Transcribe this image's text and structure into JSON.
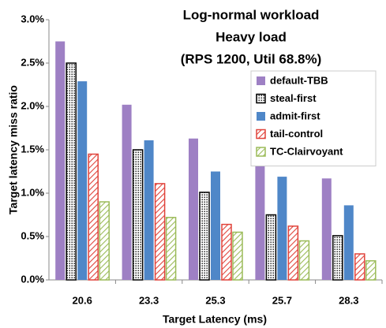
{
  "chart_data": {
    "type": "bar",
    "title_lines": [
      "Log-normal workload",
      "Heavy load",
      "(RPS 1200, Util 68.8%)"
    ],
    "x_label": "Target Latency (ms)",
    "y_label": "Target latency miss ratio",
    "categories": [
      "20.6",
      "23.3",
      "25.3",
      "25.7",
      "28.3"
    ],
    "series": [
      {
        "name": "default-TBB",
        "color": "#9e80c4",
        "pattern": "solid",
        "values": [
          2.75,
          2.02,
          1.63,
          1.45,
          1.17
        ]
      },
      {
        "name": "steal-first",
        "color": "#000000",
        "pattern": "dots",
        "values": [
          2.5,
          1.5,
          1.01,
          0.75,
          0.51
        ]
      },
      {
        "name": "admit-first",
        "color": "#4f87c8",
        "pattern": "solid",
        "values": [
          2.29,
          1.61,
          1.25,
          1.19,
          0.86
        ]
      },
      {
        "name": "tail-control",
        "color": "#e0433b",
        "pattern": "hatch",
        "values": [
          1.45,
          1.11,
          0.64,
          0.62,
          0.3
        ]
      },
      {
        "name": "TC-Clairvoyant",
        "color": "#9bbb59",
        "pattern": "hatch",
        "values": [
          0.9,
          0.72,
          0.55,
          0.45,
          0.22
        ]
      }
    ],
    "ylim": [
      0,
      3
    ],
    "yticks": [
      {
        "value": 0,
        "label": "0.0%"
      },
      {
        "value": 0.5,
        "label": "0.5%"
      },
      {
        "value": 1,
        "label": "1.0%"
      },
      {
        "value": 1.5,
        "label": "1.5%"
      },
      {
        "value": 2,
        "label": "2.0%"
      },
      {
        "value": 2.5,
        "label": "2.5%"
      },
      {
        "value": 3,
        "label": "3.0%"
      }
    ],
    "grid": false,
    "legend": "upper right"
  }
}
